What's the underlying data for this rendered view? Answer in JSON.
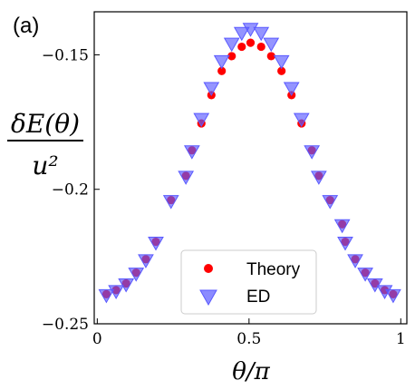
{
  "chart_data": {
    "type": "scatter",
    "panel_label": "(a)",
    "xlabel": "θ/π",
    "ylabel_numerator": "δE(θ)",
    "ylabel_denominator": "u²",
    "xlim": [
      -0.01,
      1.02
    ],
    "ylim": [
      -0.25,
      -0.134
    ],
    "xticks": [
      {
        "value": 0,
        "label": "0"
      },
      {
        "value": 0.5,
        "label": "0.5"
      },
      {
        "value": 1,
        "label": "1"
      }
    ],
    "yticks": [
      {
        "value": -0.15,
        "label": "−0.15"
      },
      {
        "value": -0.2,
        "label": "−0.2"
      },
      {
        "value": -0.25,
        "label": "−0.25"
      }
    ],
    "legend": {
      "position": "lower-center"
    },
    "series": [
      {
        "name": "Theory",
        "marker": "circle",
        "color": "#ff0000",
        "points": [
          {
            "x": 0.03,
            "y": -0.239
          },
          {
            "x": 0.062,
            "y": -0.2375
          },
          {
            "x": 0.095,
            "y": -0.235
          },
          {
            "x": 0.128,
            "y": -0.231
          },
          {
            "x": 0.16,
            "y": -0.226
          },
          {
            "x": 0.193,
            "y": -0.2195
          },
          {
            "x": 0.243,
            "y": -0.204
          },
          {
            "x": 0.292,
            "y": -0.195
          },
          {
            "x": 0.312,
            "y": -0.1855
          },
          {
            "x": 0.343,
            "y": -0.1755
          },
          {
            "x": 0.376,
            "y": -0.165
          },
          {
            "x": 0.41,
            "y": -0.156
          },
          {
            "x": 0.443,
            "y": -0.1505
          },
          {
            "x": 0.476,
            "y": -0.147
          },
          {
            "x": 0.505,
            "y": -0.1455
          },
          {
            "x": 0.54,
            "y": -0.147
          },
          {
            "x": 0.573,
            "y": -0.1505
          },
          {
            "x": 0.607,
            "y": -0.156
          },
          {
            "x": 0.64,
            "y": -0.165
          },
          {
            "x": 0.673,
            "y": -0.1755
          },
          {
            "x": 0.707,
            "y": -0.1855
          },
          {
            "x": 0.73,
            "y": -0.195
          },
          {
            "x": 0.767,
            "y": -0.204
          },
          {
            "x": 0.807,
            "y": -0.213
          },
          {
            "x": 0.817,
            "y": -0.2195
          },
          {
            "x": 0.85,
            "y": -0.226
          },
          {
            "x": 0.883,
            "y": -0.231
          },
          {
            "x": 0.915,
            "y": -0.235
          },
          {
            "x": 0.947,
            "y": -0.2375
          },
          {
            "x": 0.975,
            "y": -0.239
          }
        ]
      },
      {
        "name": "ED",
        "marker": "triangle-down",
        "color": "#5a5aff",
        "points": [
          {
            "x": 0.03,
            "y": -0.239
          },
          {
            "x": 0.062,
            "y": -0.2375
          },
          {
            "x": 0.095,
            "y": -0.235
          },
          {
            "x": 0.128,
            "y": -0.231
          },
          {
            "x": 0.16,
            "y": -0.226
          },
          {
            "x": 0.193,
            "y": -0.2195
          },
          {
            "x": 0.243,
            "y": -0.204
          },
          {
            "x": 0.292,
            "y": -0.195
          },
          {
            "x": 0.312,
            "y": -0.1855
          },
          {
            "x": 0.343,
            "y": -0.1735
          },
          {
            "x": 0.376,
            "y": -0.162
          },
          {
            "x": 0.41,
            "y": -0.152
          },
          {
            "x": 0.443,
            "y": -0.1455
          },
          {
            "x": 0.476,
            "y": -0.1415
          },
          {
            "x": 0.505,
            "y": -0.14
          },
          {
            "x": 0.54,
            "y": -0.1415
          },
          {
            "x": 0.573,
            "y": -0.1455
          },
          {
            "x": 0.607,
            "y": -0.152
          },
          {
            "x": 0.64,
            "y": -0.162
          },
          {
            "x": 0.673,
            "y": -0.1735
          },
          {
            "x": 0.707,
            "y": -0.1855
          },
          {
            "x": 0.73,
            "y": -0.195
          },
          {
            "x": 0.767,
            "y": -0.204
          },
          {
            "x": 0.807,
            "y": -0.213
          },
          {
            "x": 0.817,
            "y": -0.2195
          },
          {
            "x": 0.85,
            "y": -0.226
          },
          {
            "x": 0.883,
            "y": -0.231
          },
          {
            "x": 0.915,
            "y": -0.235
          },
          {
            "x": 0.947,
            "y": -0.2375
          },
          {
            "x": 0.975,
            "y": -0.239
          }
        ]
      }
    ]
  }
}
